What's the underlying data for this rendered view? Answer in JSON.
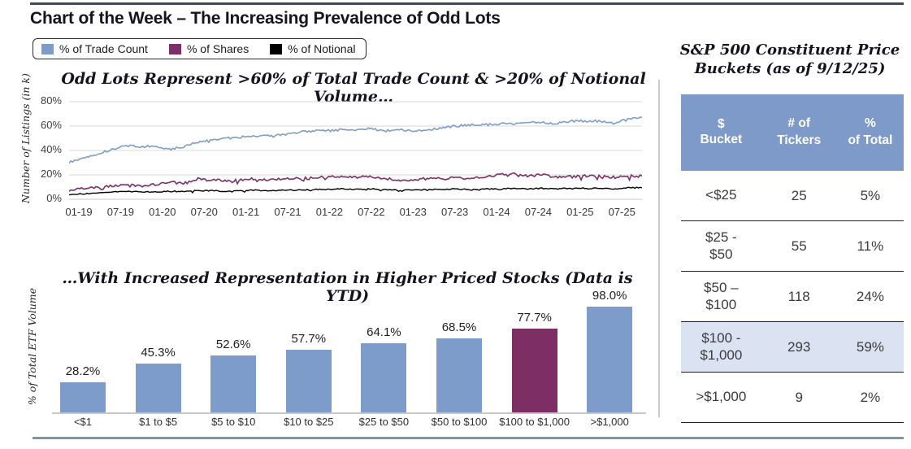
{
  "header": {
    "title": "Chart of the Week – The Increasing Prevalence of Odd Lots"
  },
  "legend": {
    "items": [
      {
        "label": "% of Trade Count",
        "color": "#7e9cc9"
      },
      {
        "label": "% of Shares",
        "color": "#7b3067"
      },
      {
        "label": "% of Notional",
        "color": "#000000"
      }
    ]
  },
  "chart_data": [
    {
      "type": "line",
      "title": "Odd Lots Represent >60% of Total Trade Count & >20% of Notional Volume…",
      "ylabel": "Number of Listings (in k)",
      "xlabel": "",
      "ylim": [
        0,
        80
      ],
      "grid": true,
      "legend_position": "top-left",
      "ytick_labels": [
        "80%",
        "60%",
        "40%",
        "20%",
        "0%"
      ],
      "ytick_values": [
        80,
        60,
        40,
        20,
        0
      ],
      "xtick_labels": [
        "01-19",
        "07-19",
        "01-20",
        "07-20",
        "01-21",
        "07-21",
        "01-22",
        "07-22",
        "01-23",
        "07-23",
        "01-24",
        "07-24",
        "01-25",
        "07-25"
      ],
      "anchor_step_months": 2,
      "x_range_months": 80,
      "series": [
        {
          "name": "% of Trade Count",
          "color": "#7f9dc7",
          "values": [
            30,
            34,
            37,
            41,
            44,
            43,
            44,
            41,
            43,
            47,
            49,
            50,
            51,
            52,
            52,
            53,
            55,
            56,
            56,
            57,
            57,
            58,
            56,
            57,
            56,
            57,
            58,
            60,
            61,
            61,
            62,
            62,
            63,
            63,
            62,
            64,
            64,
            64,
            62,
            66,
            67
          ]
        },
        {
          "name": "% of Shares",
          "color": "#7b3067",
          "values": [
            8,
            9,
            10,
            11,
            12,
            11,
            12,
            14,
            13,
            17,
            16,
            15,
            16,
            17,
            16,
            17,
            17,
            18,
            18,
            19,
            18,
            19,
            17,
            16,
            16,
            17,
            17,
            18,
            17,
            18,
            20,
            21,
            19,
            20,
            18,
            19,
            19,
            19,
            18,
            19,
            19
          ]
        },
        {
          "name": "% of Notional",
          "color": "#000000",
          "values": [
            4,
            4.5,
            5.5,
            6,
            6.5,
            6,
            6,
            6.5,
            6.5,
            7,
            7,
            6.5,
            7,
            7.5,
            7,
            7.5,
            7.5,
            8,
            8,
            8.5,
            8,
            8.5,
            8,
            7.5,
            7.5,
            8,
            8,
            8.5,
            8,
            8.5,
            8.5,
            9,
            8.5,
            9,
            8.5,
            9,
            9,
            9,
            8.5,
            9.5,
            9.5
          ]
        }
      ]
    },
    {
      "type": "bar",
      "title": "…With Increased Representation in Higher Priced Stocks (Data is YTD)",
      "ylabel": "% of Total ETF Volume",
      "xlabel": "",
      "ylim": [
        0,
        100
      ],
      "categories": [
        "<$1",
        "$1 to $5",
        "$5 to $10",
        "$10 to $25",
        "$25 to $50",
        "$50 to $100",
        "$100 to $1,000",
        ">$1,000"
      ],
      "values": [
        28.2,
        45.3,
        52.6,
        57.7,
        64.1,
        68.5,
        77.7,
        98.0
      ],
      "value_labels": [
        "28.2%",
        "45.3%",
        "52.6%",
        "57.7%",
        "64.1%",
        "68.5%",
        "77.7%",
        "98.0%"
      ],
      "highlight_index": 6,
      "bar_color": "#7e9cc9",
      "highlight_color": "#7d2e63"
    }
  ],
  "side_table": {
    "title": "S&P 500 Constituent Price\nBuckets (as of 9/12/25)",
    "header_bg": "#7e9ac9",
    "highlight_bg": "#dbe2f1",
    "columns": [
      "$\nBucket",
      "# of\nTickers",
      "%\nof Total"
    ],
    "rows": [
      {
        "bucket": "<$25",
        "tickers": "25",
        "pct_of_total": "5%",
        "highlight": false
      },
      {
        "bucket": "$25 -\n$50",
        "tickers": "55",
        "pct_of_total": "11%",
        "highlight": false
      },
      {
        "bucket": "$50 –\n$100",
        "tickers": "118",
        "pct_of_total": "24%",
        "highlight": false
      },
      {
        "bucket": "$100 -\n$1,000",
        "tickers": "293",
        "pct_of_total": "59%",
        "highlight": true
      },
      {
        "bucket": ">$1,000",
        "tickers": "9",
        "pct_of_total": "2%",
        "highlight": false
      }
    ]
  }
}
